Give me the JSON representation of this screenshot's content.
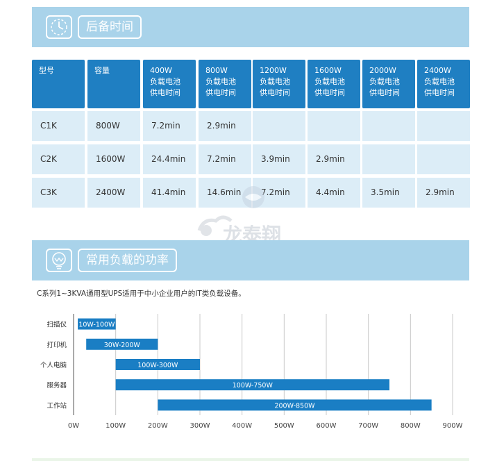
{
  "section1": {
    "title": "后备时间",
    "icon": "clock-icon"
  },
  "table": {
    "headers": [
      [
        "型号"
      ],
      [
        "容量"
      ],
      [
        "400W",
        "负载电池",
        "供电时间"
      ],
      [
        "800W",
        "负载电池",
        "供电时间"
      ],
      [
        "1200W",
        "负载电池",
        "供电时间"
      ],
      [
        "1600W",
        "负载电池",
        "供电时间"
      ],
      [
        "2000W",
        "负载电池",
        "供电时间"
      ],
      [
        "2400W",
        "负载电池",
        "供电时间"
      ]
    ],
    "rows": [
      [
        "C1K",
        "800W",
        "7.2min",
        "2.9min",
        "",
        "",
        "",
        ""
      ],
      [
        "C2K",
        "1600W",
        "24.4min",
        "7.2min",
        "3.9min",
        "2.9min",
        "",
        ""
      ],
      [
        "C3K",
        "2400W",
        "41.4min",
        "14.6min",
        "7.2min",
        "4.4min",
        "3.5min",
        "2.9min"
      ]
    ]
  },
  "watermark": {
    "text": "龙泰翔"
  },
  "section2": {
    "title": "常用负载的功率",
    "icon": "lightbulb-icon"
  },
  "caption": "C系列1~3KVA通用型UPS适用于中小企业用户的IT类负载设备。",
  "colors": {
    "banner": "#a9d3ea",
    "header": "#1f7fc2",
    "cell": "#dcedf7",
    "bar": "#1a7ec4"
  },
  "chart_data": {
    "type": "bar",
    "orientation": "horizontal-range",
    "categories": [
      "扫描仪",
      "打印机",
      "个人电脑",
      "服务器",
      "工作站"
    ],
    "ranges": [
      [
        10,
        100
      ],
      [
        30,
        200
      ],
      [
        100,
        300
      ],
      [
        100,
        750
      ],
      [
        200,
        850
      ]
    ],
    "bar_labels": [
      "10W-100W",
      "30W-200W",
      "100W-300W",
      "100W-750W",
      "200W-850W"
    ],
    "x_ticks": [
      "0W",
      "100W",
      "200W",
      "300W",
      "400W",
      "500W",
      "600W",
      "700W",
      "800W",
      "900W"
    ],
    "xlim": [
      0,
      900
    ],
    "grid": true
  }
}
